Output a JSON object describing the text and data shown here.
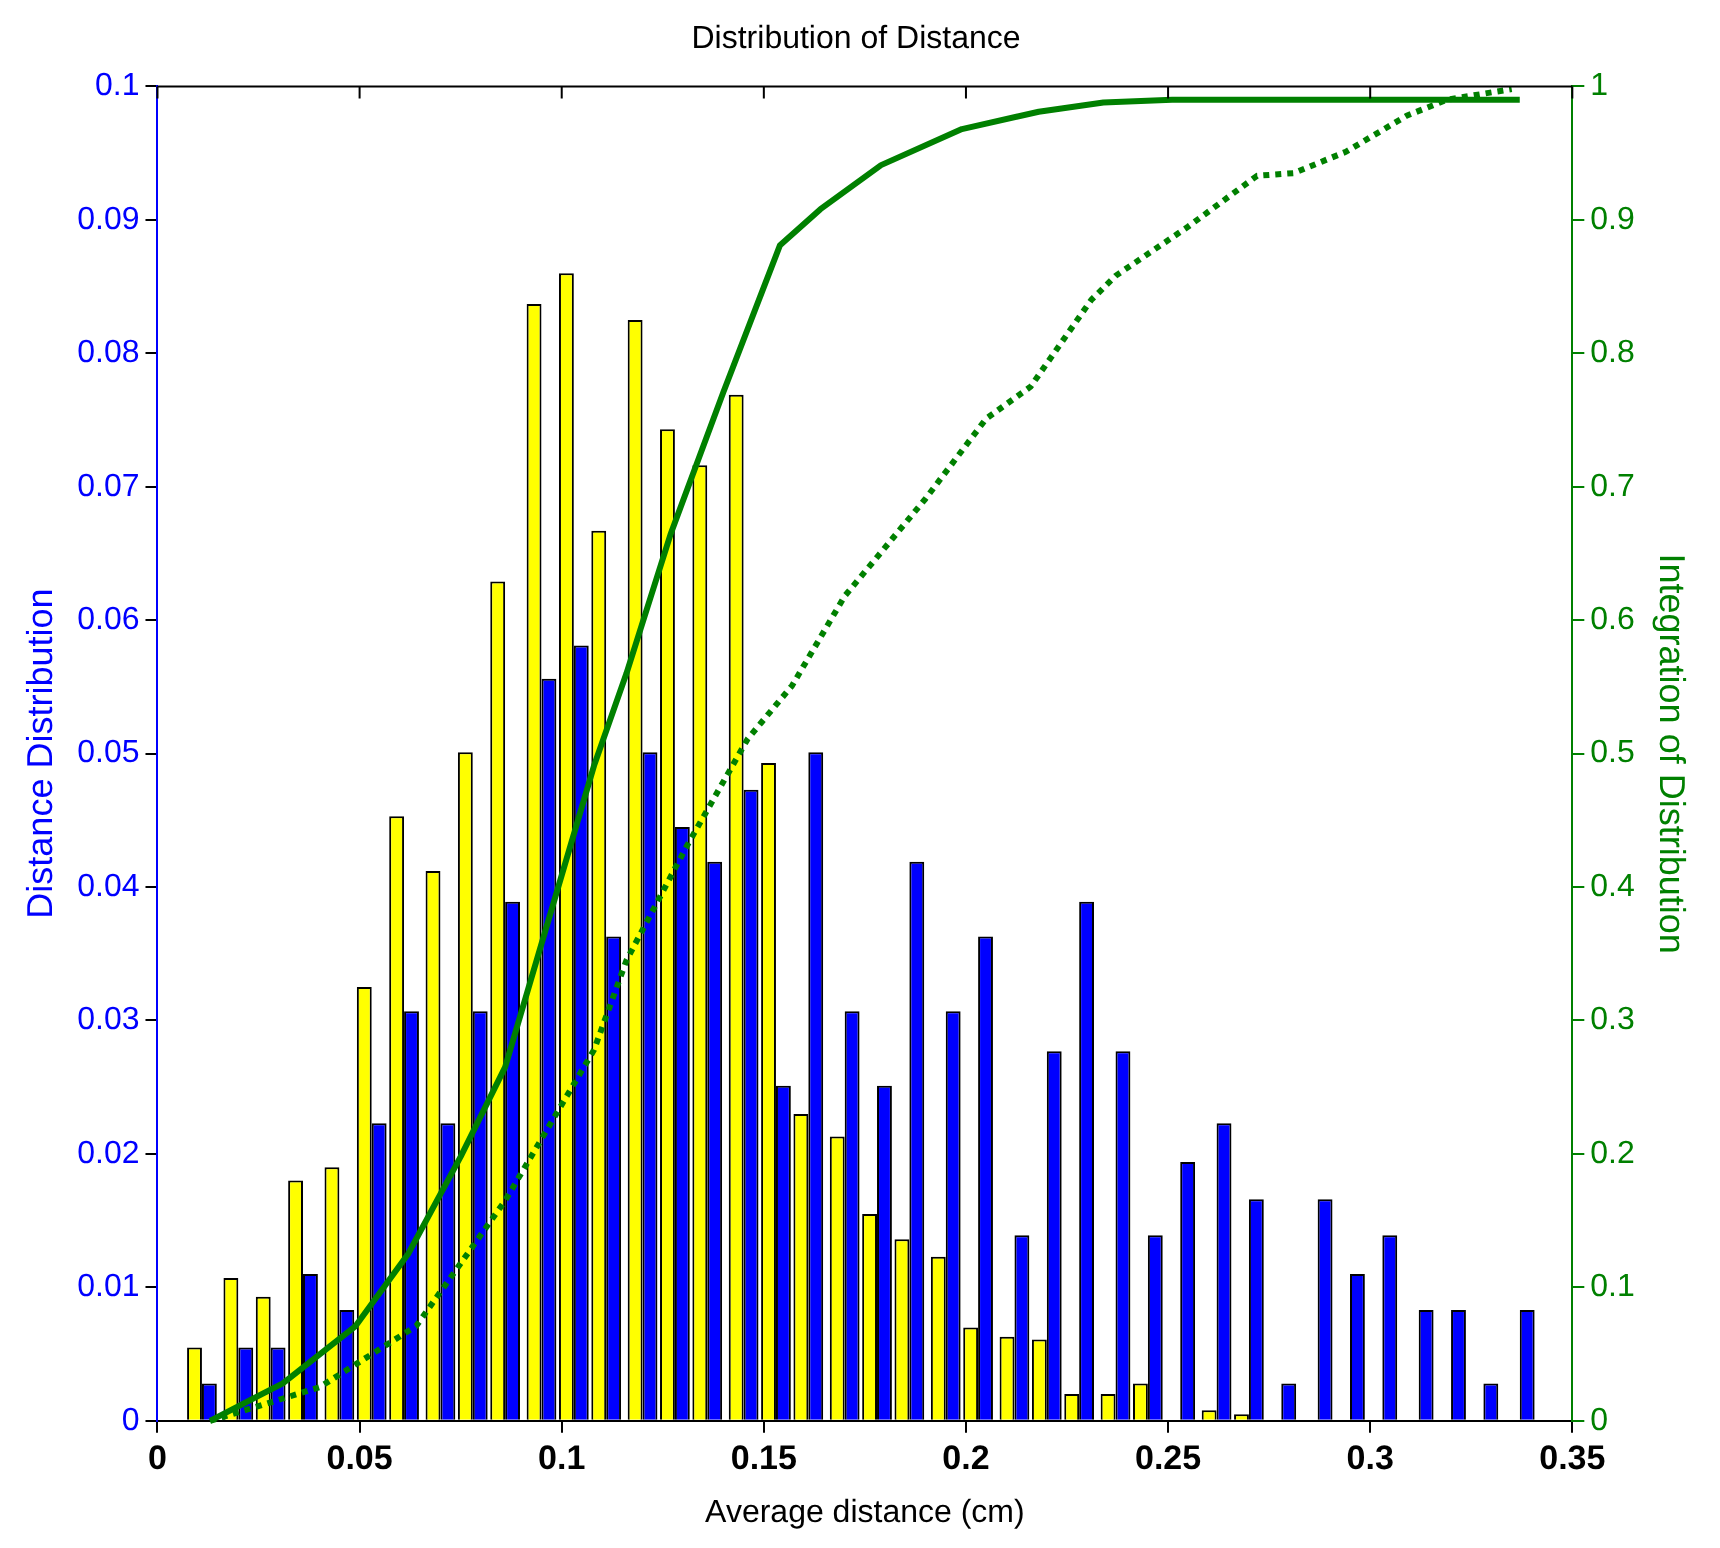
{
  "chart_data": {
    "type": "bar",
    "title": "Distribution of Distance",
    "xlabel": "Average distance (cm)",
    "ylabel": "Distance Distribution",
    "y2label": "Integration of Distribution",
    "x": [
      0.011,
      0.02,
      0.028,
      0.036,
      0.045,
      0.053,
      0.061,
      0.07,
      0.078,
      0.086,
      0.095,
      0.103,
      0.111,
      0.12,
      0.128,
      0.136,
      0.145,
      0.153,
      0.161,
      0.17,
      0.178,
      0.186,
      0.195,
      0.203,
      0.212,
      0.22,
      0.228,
      0.237,
      0.245,
      0.253,
      0.262,
      0.27,
      0.278,
      0.287,
      0.295,
      0.303,
      0.312,
      0.32,
      0.328,
      0.337
    ],
    "series": [
      {
        "type": "bar",
        "color": "#ffff00",
        "values": [
          0.0055,
          0.0107,
          0.0093,
          0.018,
          0.019,
          0.0325,
          0.0453,
          0.0412,
          0.0501,
          0.0629,
          0.0837,
          0.086,
          0.0667,
          0.0825,
          0.0743,
          0.0716,
          0.0769,
          0.0493,
          0.023,
          0.0213,
          0.0155,
          0.0136,
          0.0123,
          0.007,
          0.0063,
          0.0061,
          0.002,
          0.002,
          0.0028,
          0,
          0.0008,
          0.0005,
          0,
          0,
          0,
          0,
          0,
          0,
          0,
          0
        ]
      },
      {
        "type": "bar",
        "color": "#0000ff",
        "values": [
          0.0028,
          0.0055,
          0.0055,
          0.011,
          0.0083,
          0.0223,
          0.0307,
          0.0223,
          0.0307,
          0.0389,
          0.0556,
          0.0581,
          0.0363,
          0.0501,
          0.0445,
          0.0419,
          0.0473,
          0.0251,
          0.0501,
          0.0307,
          0.0251,
          0.0419,
          0.0307,
          0.0363,
          0.0139,
          0.0277,
          0.0389,
          0.0277,
          0.0139,
          0.0194,
          0.0223,
          0.0166,
          0.0028,
          0.0166,
          0.011,
          0.0139,
          0.0083,
          0.0083,
          0.0028,
          0.0083
        ]
      },
      {
        "type": "line",
        "axis": "y2",
        "color": "#008000",
        "line_style": "solid",
        "x": [
          0.013,
          0.031,
          0.049,
          0.062,
          0.075,
          0.086,
          0.097,
          0.108,
          0.116,
          0.127,
          0.14,
          0.154,
          0.164,
          0.179,
          0.199,
          0.218,
          0.234,
          0.251,
          0.337
        ],
        "values": [
          0,
          0.028,
          0.071,
          0.125,
          0.198,
          0.265,
          0.378,
          0.491,
          0.56,
          0.665,
          0.771,
          0.881,
          0.908,
          0.941,
          0.968,
          0.981,
          0.988,
          0.99,
          0.99
        ]
      },
      {
        "type": "line",
        "axis": "y2",
        "color": "#008000",
        "line_style": "dotted",
        "x": [
          0.013,
          0.04,
          0.064,
          0.086,
          0.108,
          0.116,
          0.131,
          0.146,
          0.157,
          0.17,
          0.19,
          0.205,
          0.216,
          0.231,
          0.237,
          0.255,
          0.272,
          0.281,
          0.294,
          0.309,
          0.319,
          0.335
        ],
        "values": [
          0,
          0.025,
          0.071,
          0.165,
          0.278,
          0.345,
          0.431,
          0.511,
          0.551,
          0.618,
          0.691,
          0.751,
          0.775,
          0.84,
          0.858,
          0.895,
          0.933,
          0.935,
          0.951,
          0.978,
          0.99,
          0.998
        ]
      }
    ],
    "xlim": [
      0,
      0.35
    ],
    "xticks": [
      0,
      0.05,
      0.1,
      0.15,
      0.2,
      0.25,
      0.3,
      0.35
    ],
    "ylim": [
      0,
      0.1
    ],
    "yticks": [
      0,
      0.01,
      0.02,
      0.03,
      0.04,
      0.05,
      0.06,
      0.07,
      0.08,
      0.09,
      0.1
    ],
    "y2lim": [
      0,
      1
    ],
    "y2ticks": [
      0,
      0.1,
      0.2,
      0.3,
      0.4,
      0.5,
      0.6,
      0.7,
      0.8,
      0.9,
      1
    ],
    "grid": false,
    "legend": false
  }
}
